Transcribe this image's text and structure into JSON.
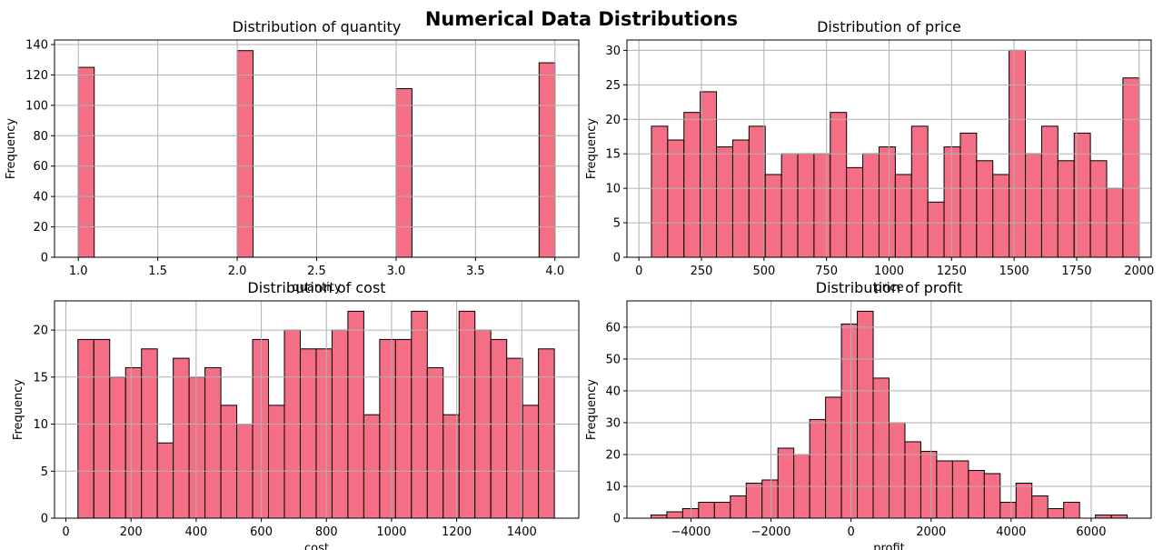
{
  "figure": {
    "title": "Numerical Data Distributions"
  },
  "colors": {
    "bar": "#f46f86",
    "edge": "#000000",
    "grid": "#b0b0b0"
  },
  "chart_data": [
    {
      "type": "bar",
      "title": "Distribution of quantity",
      "xlabel": "quantity",
      "ylabel": "Frequency",
      "xlim": [
        0.85,
        4.15
      ],
      "ylim": [
        0,
        143
      ],
      "xticks": [
        1.0,
        1.5,
        2.0,
        2.5,
        3.0,
        3.5,
        4.0
      ],
      "xtick_labels": [
        "1.0",
        "1.5",
        "2.0",
        "2.5",
        "3.0",
        "3.5",
        "4.0"
      ],
      "yticks": [
        0,
        20,
        40,
        60,
        80,
        100,
        120,
        140
      ],
      "bin_edges": [
        1.0,
        1.1,
        2.0,
        2.1,
        3.0,
        3.1,
        3.9,
        4.0
      ],
      "values": [
        125,
        0,
        136,
        0,
        111,
        0,
        128
      ],
      "grid": true
    },
    {
      "type": "bar",
      "title": "Distribution of price",
      "xlabel": "price",
      "ylabel": "Frequency",
      "xlim": [
        -48,
        2048
      ],
      "ylim": [
        0,
        31.5
      ],
      "xticks": [
        0,
        250,
        500,
        750,
        1000,
        1250,
        1500,
        1750,
        2000
      ],
      "xtick_labels": [
        "0",
        "250",
        "500",
        "750",
        "1000",
        "1250",
        "1500",
        "1750",
        "2000"
      ],
      "yticks": [
        0,
        5,
        10,
        15,
        20,
        25,
        30
      ],
      "bin_start": 50,
      "bin_end": 2000,
      "values": [
        19,
        17,
        21,
        24,
        16,
        17,
        19,
        12,
        15,
        15,
        15,
        21,
        13,
        15,
        16,
        12,
        19,
        8,
        16,
        18,
        14,
        12,
        30,
        15,
        19,
        14,
        18,
        14,
        10,
        26
      ],
      "grid": true
    },
    {
      "type": "bar",
      "title": "Distribution of cost",
      "xlabel": "cost",
      "ylabel": "Frequency",
      "xlim": [
        -35,
        1575
      ],
      "ylim": [
        0,
        23.1
      ],
      "xticks": [
        0,
        200,
        400,
        600,
        800,
        1000,
        1200,
        1400
      ],
      "xtick_labels": [
        "0",
        "200",
        "400",
        "600",
        "800",
        "1000",
        "1200",
        "1400"
      ],
      "yticks": [
        0,
        5,
        10,
        15,
        20
      ],
      "bin_start": 37,
      "bin_end": 1500,
      "values": [
        19,
        19,
        15,
        16,
        18,
        8,
        17,
        15,
        16,
        12,
        10,
        19,
        12,
        20,
        18,
        18,
        20,
        22,
        11,
        19,
        19,
        22,
        16,
        11,
        22,
        20,
        19,
        17,
        12,
        18
      ],
      "grid": true
    },
    {
      "type": "bar",
      "title": "Distribution of profit",
      "xlabel": "profit",
      "ylabel": "Frequency",
      "xlim": [
        -5600,
        7500
      ],
      "ylim": [
        0,
        68.25
      ],
      "xticks": [
        -4000,
        -2000,
        0,
        2000,
        4000,
        6000
      ],
      "xtick_labels": [
        "−4000",
        "−2000",
        "0",
        "2000",
        "4000",
        "6000"
      ],
      "yticks": [
        0,
        10,
        20,
        30,
        40,
        50,
        60
      ],
      "bin_start": -5000,
      "bin_end": 6900,
      "values": [
        1,
        2,
        3,
        5,
        5,
        7,
        11,
        12,
        22,
        20,
        31,
        38,
        61,
        65,
        44,
        30,
        24,
        21,
        18,
        18,
        15,
        14,
        5,
        11,
        7,
        3,
        5,
        0,
        1,
        1
      ],
      "grid": true
    }
  ]
}
